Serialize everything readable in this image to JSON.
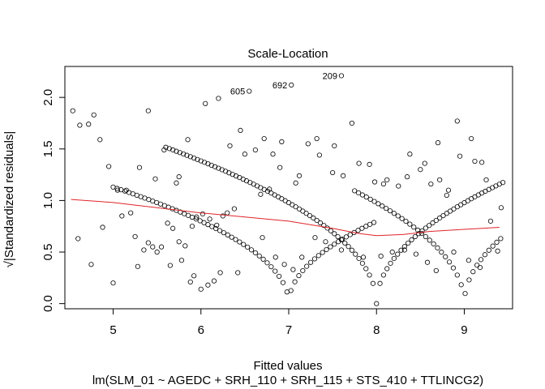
{
  "chart_data": {
    "type": "scatter",
    "title": "Scale-Location",
    "xlabel": "Fitted values",
    "subtitle": "lm(SLM_01 ~ AGEDC + SRH_110 + SRH_115 + STS_410 + TTLINCG2)",
    "ylabel": "√|Standardized residuals|",
    "xlim": [
      4.45,
      9.55
    ],
    "ylim": [
      -0.05,
      2.3
    ],
    "x_ticks": [
      "5",
      "6",
      "7",
      "8",
      "9"
    ],
    "y_ticks": [
      "0.0",
      "0.5",
      "1.0",
      "1.5",
      "2.0"
    ],
    "grid": false,
    "point_color": "#000000",
    "smooth_color": "#e0242a",
    "smoother": {
      "x": [
        4.52,
        5.0,
        5.5,
        6.0,
        6.5,
        7.0,
        7.5,
        7.8,
        8.0,
        8.3,
        8.6,
        9.0,
        9.4
      ],
      "y": [
        1.01,
        0.98,
        0.93,
        0.88,
        0.84,
        0.8,
        0.73,
        0.68,
        0.66,
        0.67,
        0.7,
        0.72,
        0.74
      ]
    },
    "labeled_points": [
      {
        "label": "209",
        "x": 7.6,
        "y": 2.21
      },
      {
        "label": "692",
        "x": 7.03,
        "y": 2.12
      },
      {
        "label": "605",
        "x": 6.55,
        "y": 2.06
      }
    ],
    "points": {
      "x": [
        4.54,
        4.62,
        4.72,
        4.78,
        4.85,
        4.95,
        5.05,
        5.1,
        5.2,
        5.25,
        5.35,
        5.4,
        5.45,
        5.55,
        5.62,
        5.68,
        5.75,
        5.82,
        5.9,
        5.95,
        6.02,
        6.1,
        6.18,
        6.25,
        6.3,
        6.38,
        6.5,
        6.68,
        6.78,
        6.9,
        7.08,
        7.22,
        7.35,
        7.5,
        7.72,
        7.8,
        7.98,
        8.12,
        8.25,
        8.38,
        8.5,
        8.62,
        8.72,
        8.8,
        8.92,
        9.08,
        9.2,
        9.3,
        9.42,
        5.0,
        5.28,
        5.5,
        5.65,
        5.78,
        5.88,
        5.92,
        6.0,
        6.08,
        6.15,
        6.22,
        6.42,
        6.7,
        6.85,
        6.95,
        7.05,
        7.15,
        7.3,
        7.42,
        7.6,
        7.85,
        8.05,
        8.18,
        8.32,
        8.45,
        8.58,
        8.68,
        8.88,
        9.05,
        9.18,
        5.3,
        5.48,
        5.72,
        4.6,
        4.75,
        4.88,
        5.15,
        5.4,
        5.58,
        5.75,
        5.85,
        6.05,
        6.2,
        6.33,
        6.45,
        6.62,
        6.72,
        6.82,
        6.92,
        7.12,
        7.32,
        7.52,
        7.62,
        7.92,
        8.08,
        8.35,
        8.55,
        8.7,
        8.82,
        8.95,
        9.12,
        9.25,
        9.38
      ],
      "y": [
        1.87,
        1.73,
        1.74,
        1.83,
        1.59,
        1.33,
        1.1,
        0.85,
        0.88,
        0.65,
        0.52,
        0.59,
        0.55,
        0.55,
        0.78,
        0.73,
        0.6,
        0.56,
        0.75,
        0.84,
        0.87,
        0.82,
        0.76,
        0.85,
        0.88,
        0.92,
        1.45,
        1.06,
        1.11,
        1.32,
        1.17,
        1.55,
        1.44,
        1.27,
        1.75,
        1.36,
        1.18,
        1.2,
        1.14,
        1.45,
        1.3,
        1.16,
        1.2,
        1.05,
        1.77,
        1.6,
        1.37,
        0.8,
        0.93,
        0.2,
        0.36,
        0.5,
        0.37,
        0.42,
        0.21,
        0.27,
        0.14,
        0.18,
        0.22,
        0.3,
        0.3,
        0.64,
        0.45,
        0.38,
        0.33,
        0.45,
        0.64,
        0.6,
        0.52,
        0.45,
        0.46,
        0.5,
        0.52,
        0.48,
        0.4,
        0.32,
        0.5,
        0.42,
        0.35,
        1.32,
        1.21,
        1.17,
        0.63,
        0.38,
        0.74,
        1.1,
        1.87,
        1.49,
        1.23,
        1.59,
        1.94,
        1.99,
        1.53,
        1.68,
        1.49,
        1.6,
        1.45,
        1.57,
        1.24,
        1.6,
        1.53,
        1.24,
        1.35,
        1.16,
        1.23,
        1.36,
        1.56,
        1.1,
        1.43,
        1.38,
        1.2,
        0.51
      ]
    },
    "v_curves": [
      {
        "center": 7.0,
        "scale": 0.5,
        "x_range": [
          5.0,
          8.0
        ],
        "step": 0.045
      },
      {
        "center": 8.0,
        "scale": 0.75,
        "x_range": [
          5.6,
          9.45
        ],
        "step": 0.04
      },
      {
        "center": 9.0,
        "scale": 0.75,
        "x_range": [
          7.75,
          9.45
        ],
        "step": 0.045
      }
    ]
  }
}
